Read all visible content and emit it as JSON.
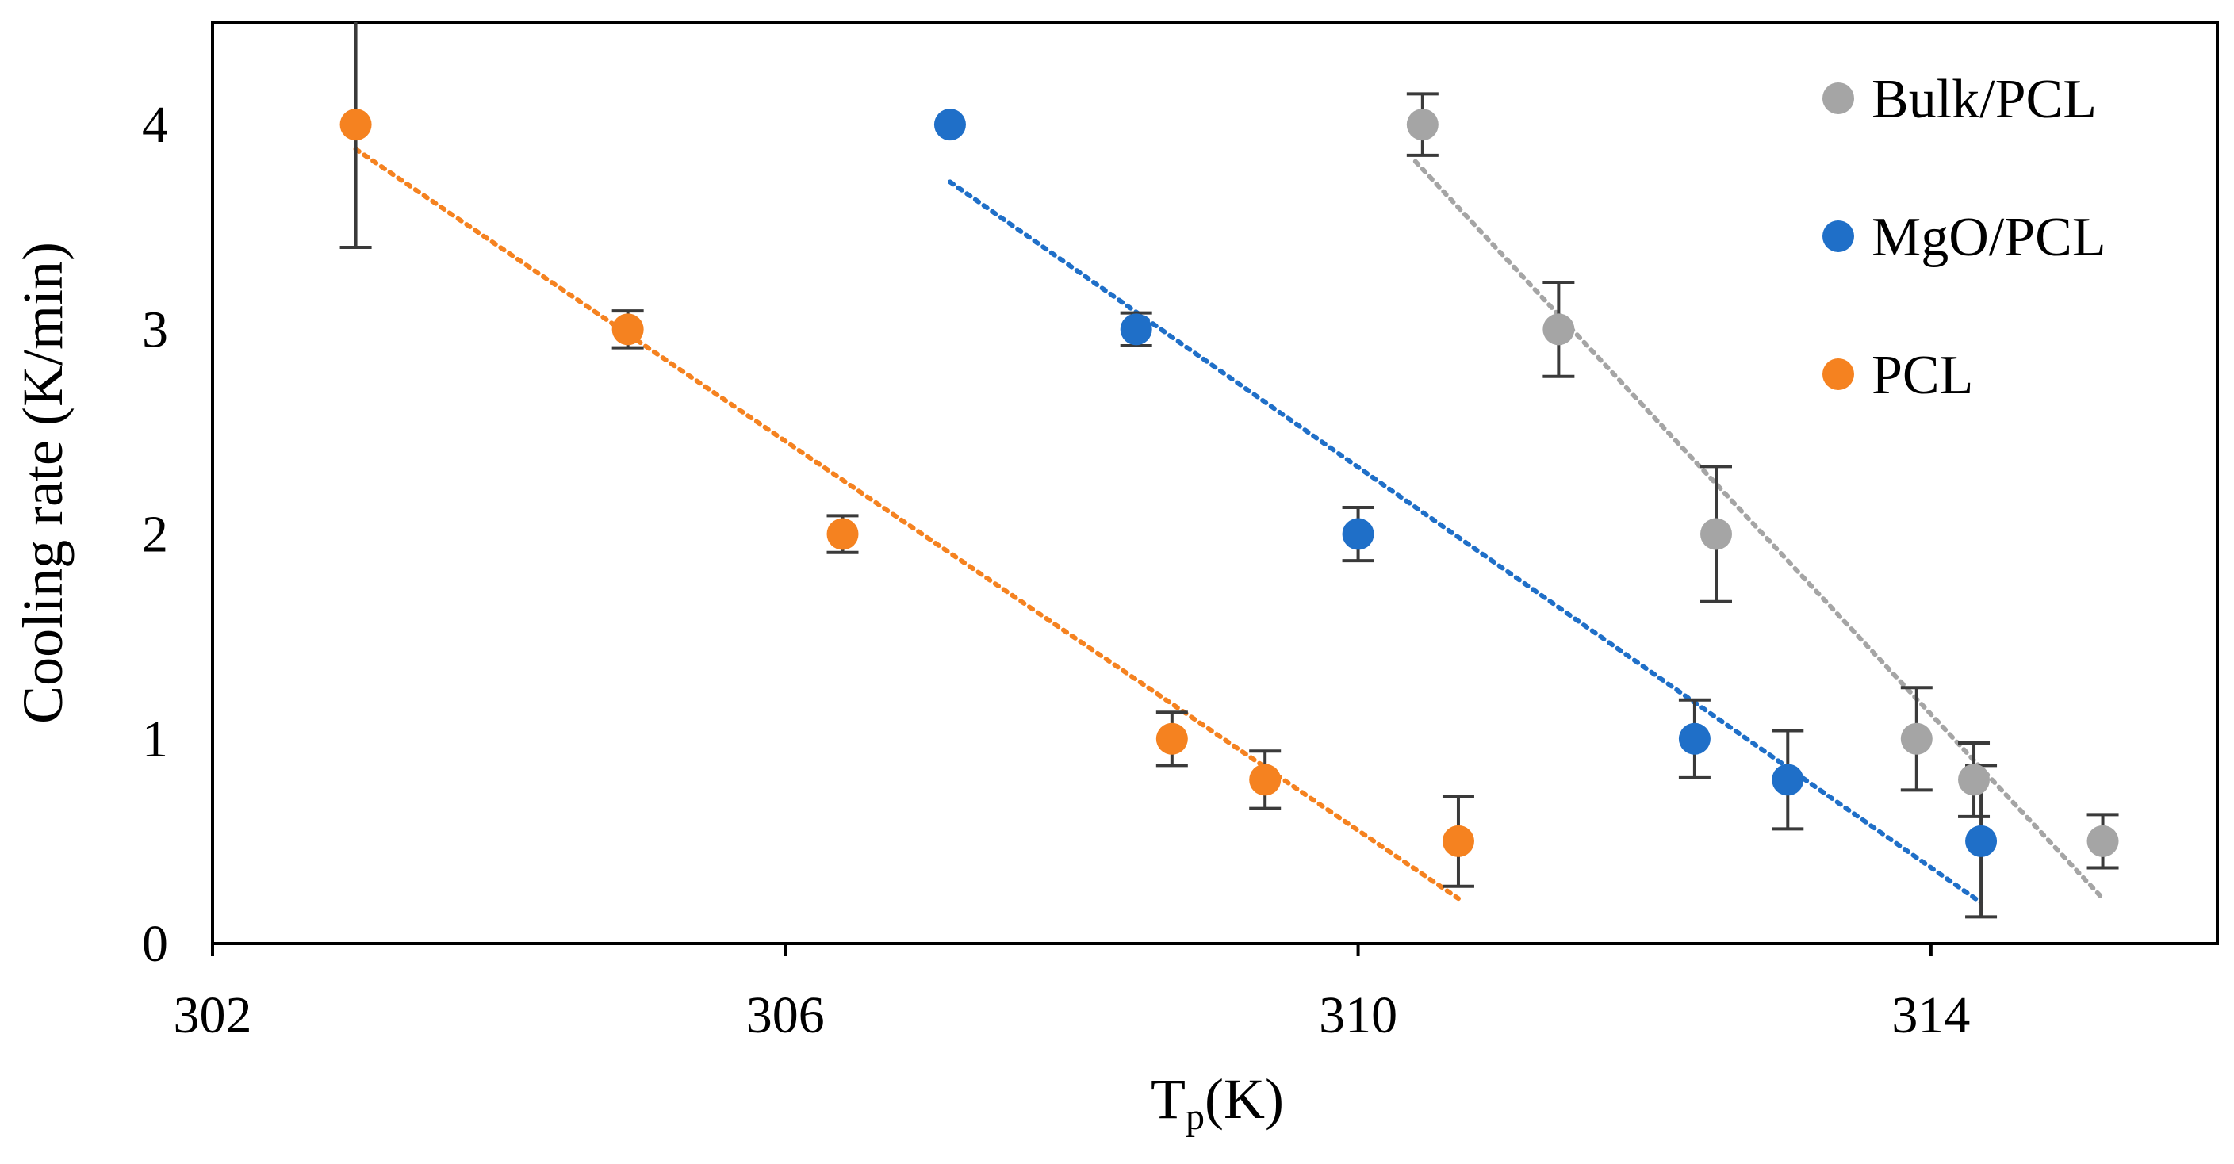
{
  "chart_data": {
    "type": "scatter",
    "title": "",
    "xlabel": "T",
    "xlabel_sub": "p",
    "xlabel_suffix": "(K)",
    "ylabel": "Cooling rate (K/min)",
    "xlim": [
      302,
      316
    ],
    "ylim": [
      0,
      4.5
    ],
    "xticks": [
      302,
      306,
      310,
      314
    ],
    "yticks": [
      0,
      1,
      2,
      3,
      4
    ],
    "grid": false,
    "legend_position": "top-right",
    "series": [
      {
        "name": "Bulk/PCL",
        "color": "#a5a5a5",
        "x": [
          310.45,
          311.4,
          312.5,
          313.9,
          314.3,
          315.2
        ],
        "y": [
          4,
          3,
          2,
          1,
          0.8,
          0.5
        ],
        "err": [
          0.15,
          0.23,
          0.33,
          0.25,
          0.18,
          0.13
        ],
        "trendline": {
          "x": [
            310.4,
            315.2
          ],
          "y": [
            3.82,
            0.22
          ]
        }
      },
      {
        "name": "MgO/PCL",
        "color": "#1f6fc8",
        "x": [
          307.15,
          308.45,
          310.0,
          312.35,
          313.0,
          314.35
        ],
        "y": [
          4,
          3,
          2,
          1,
          0.8,
          0.5
        ],
        "err": [
          0,
          0.08,
          0.13,
          0.19,
          0.24,
          0.37
        ],
        "trendline": {
          "x": [
            307.15,
            314.35
          ],
          "y": [
            3.72,
            0.2
          ]
        }
      },
      {
        "name": "PCL",
        "color": "#f58220",
        "x": [
          303.0,
          304.9,
          306.4,
          308.7,
          309.35,
          310.7
        ],
        "y": [
          4,
          3,
          2,
          1,
          0.8,
          0.5
        ],
        "err": [
          0.6,
          0.09,
          0.09,
          0.13,
          0.14,
          0.22
        ],
        "err_up": [
          0.55,
          0.09,
          0.09,
          0.13,
          0.14,
          0.22
        ],
        "trendline": {
          "x": [
            303.0,
            310.7
          ],
          "y": [
            3.88,
            0.22
          ]
        }
      }
    ]
  }
}
